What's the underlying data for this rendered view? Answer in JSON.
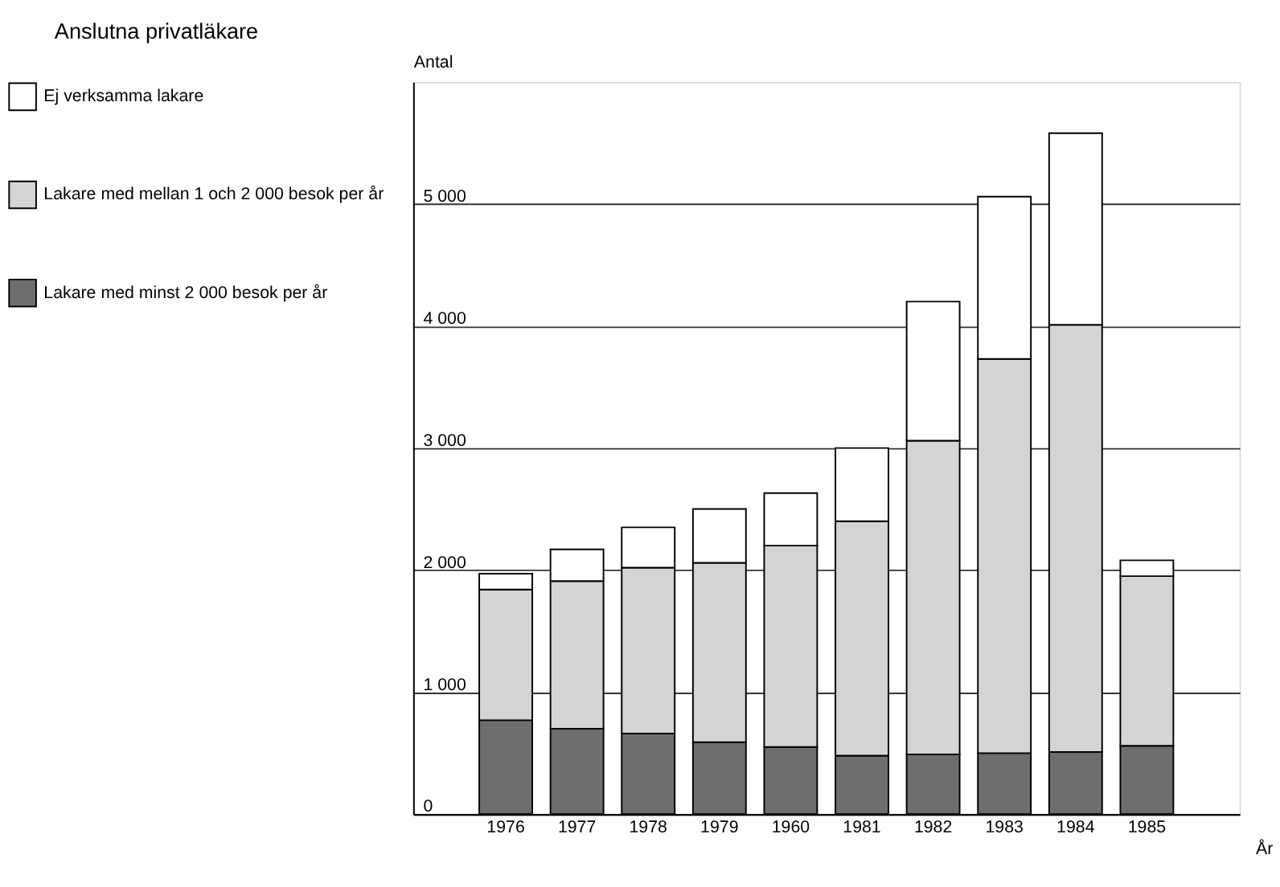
{
  "chart_data": {
    "type": "bar",
    "title": "Anslutna privatläkare",
    "ylabel": "Antal",
    "xlabel": "År",
    "categories": [
      "1976",
      "1977",
      "1978",
      "1979",
      "1960",
      "1981",
      "1982",
      "1983",
      "1984",
      "1985"
    ],
    "stacked": true,
    "series": [
      {
        "name": "Lakare med minst 2 000 besok per år",
        "color": "#6e6e6e",
        "values": [
          770,
          700,
          660,
          590,
          550,
          480,
          490,
          500,
          510,
          560
        ]
      },
      {
        "name": "Lakare med mellan 1 och 2 000 besok per år",
        "color": "#d4d4d4",
        "values": [
          1070,
          1210,
          1360,
          1470,
          1650,
          1920,
          2570,
          3230,
          3500,
          1390
        ]
      },
      {
        "name": "Ej verksamma lakare",
        "color": "#ffffff",
        "values": [
          130,
          260,
          330,
          440,
          430,
          600,
          1140,
          1330,
          1570,
          130
        ]
      }
    ],
    "ylim": [
      0,
      6000
    ],
    "yticks": [
      0,
      {
        "value": 1000,
        "label": "1 000"
      },
      {
        "value": 2000,
        "label": "2 000"
      },
      {
        "value": 3000,
        "label": "3 000"
      },
      {
        "value": 4000,
        "label": "4 000"
      },
      {
        "value": 5000,
        "label": "5 000"
      }
    ],
    "grid": "y",
    "legend": "left"
  }
}
